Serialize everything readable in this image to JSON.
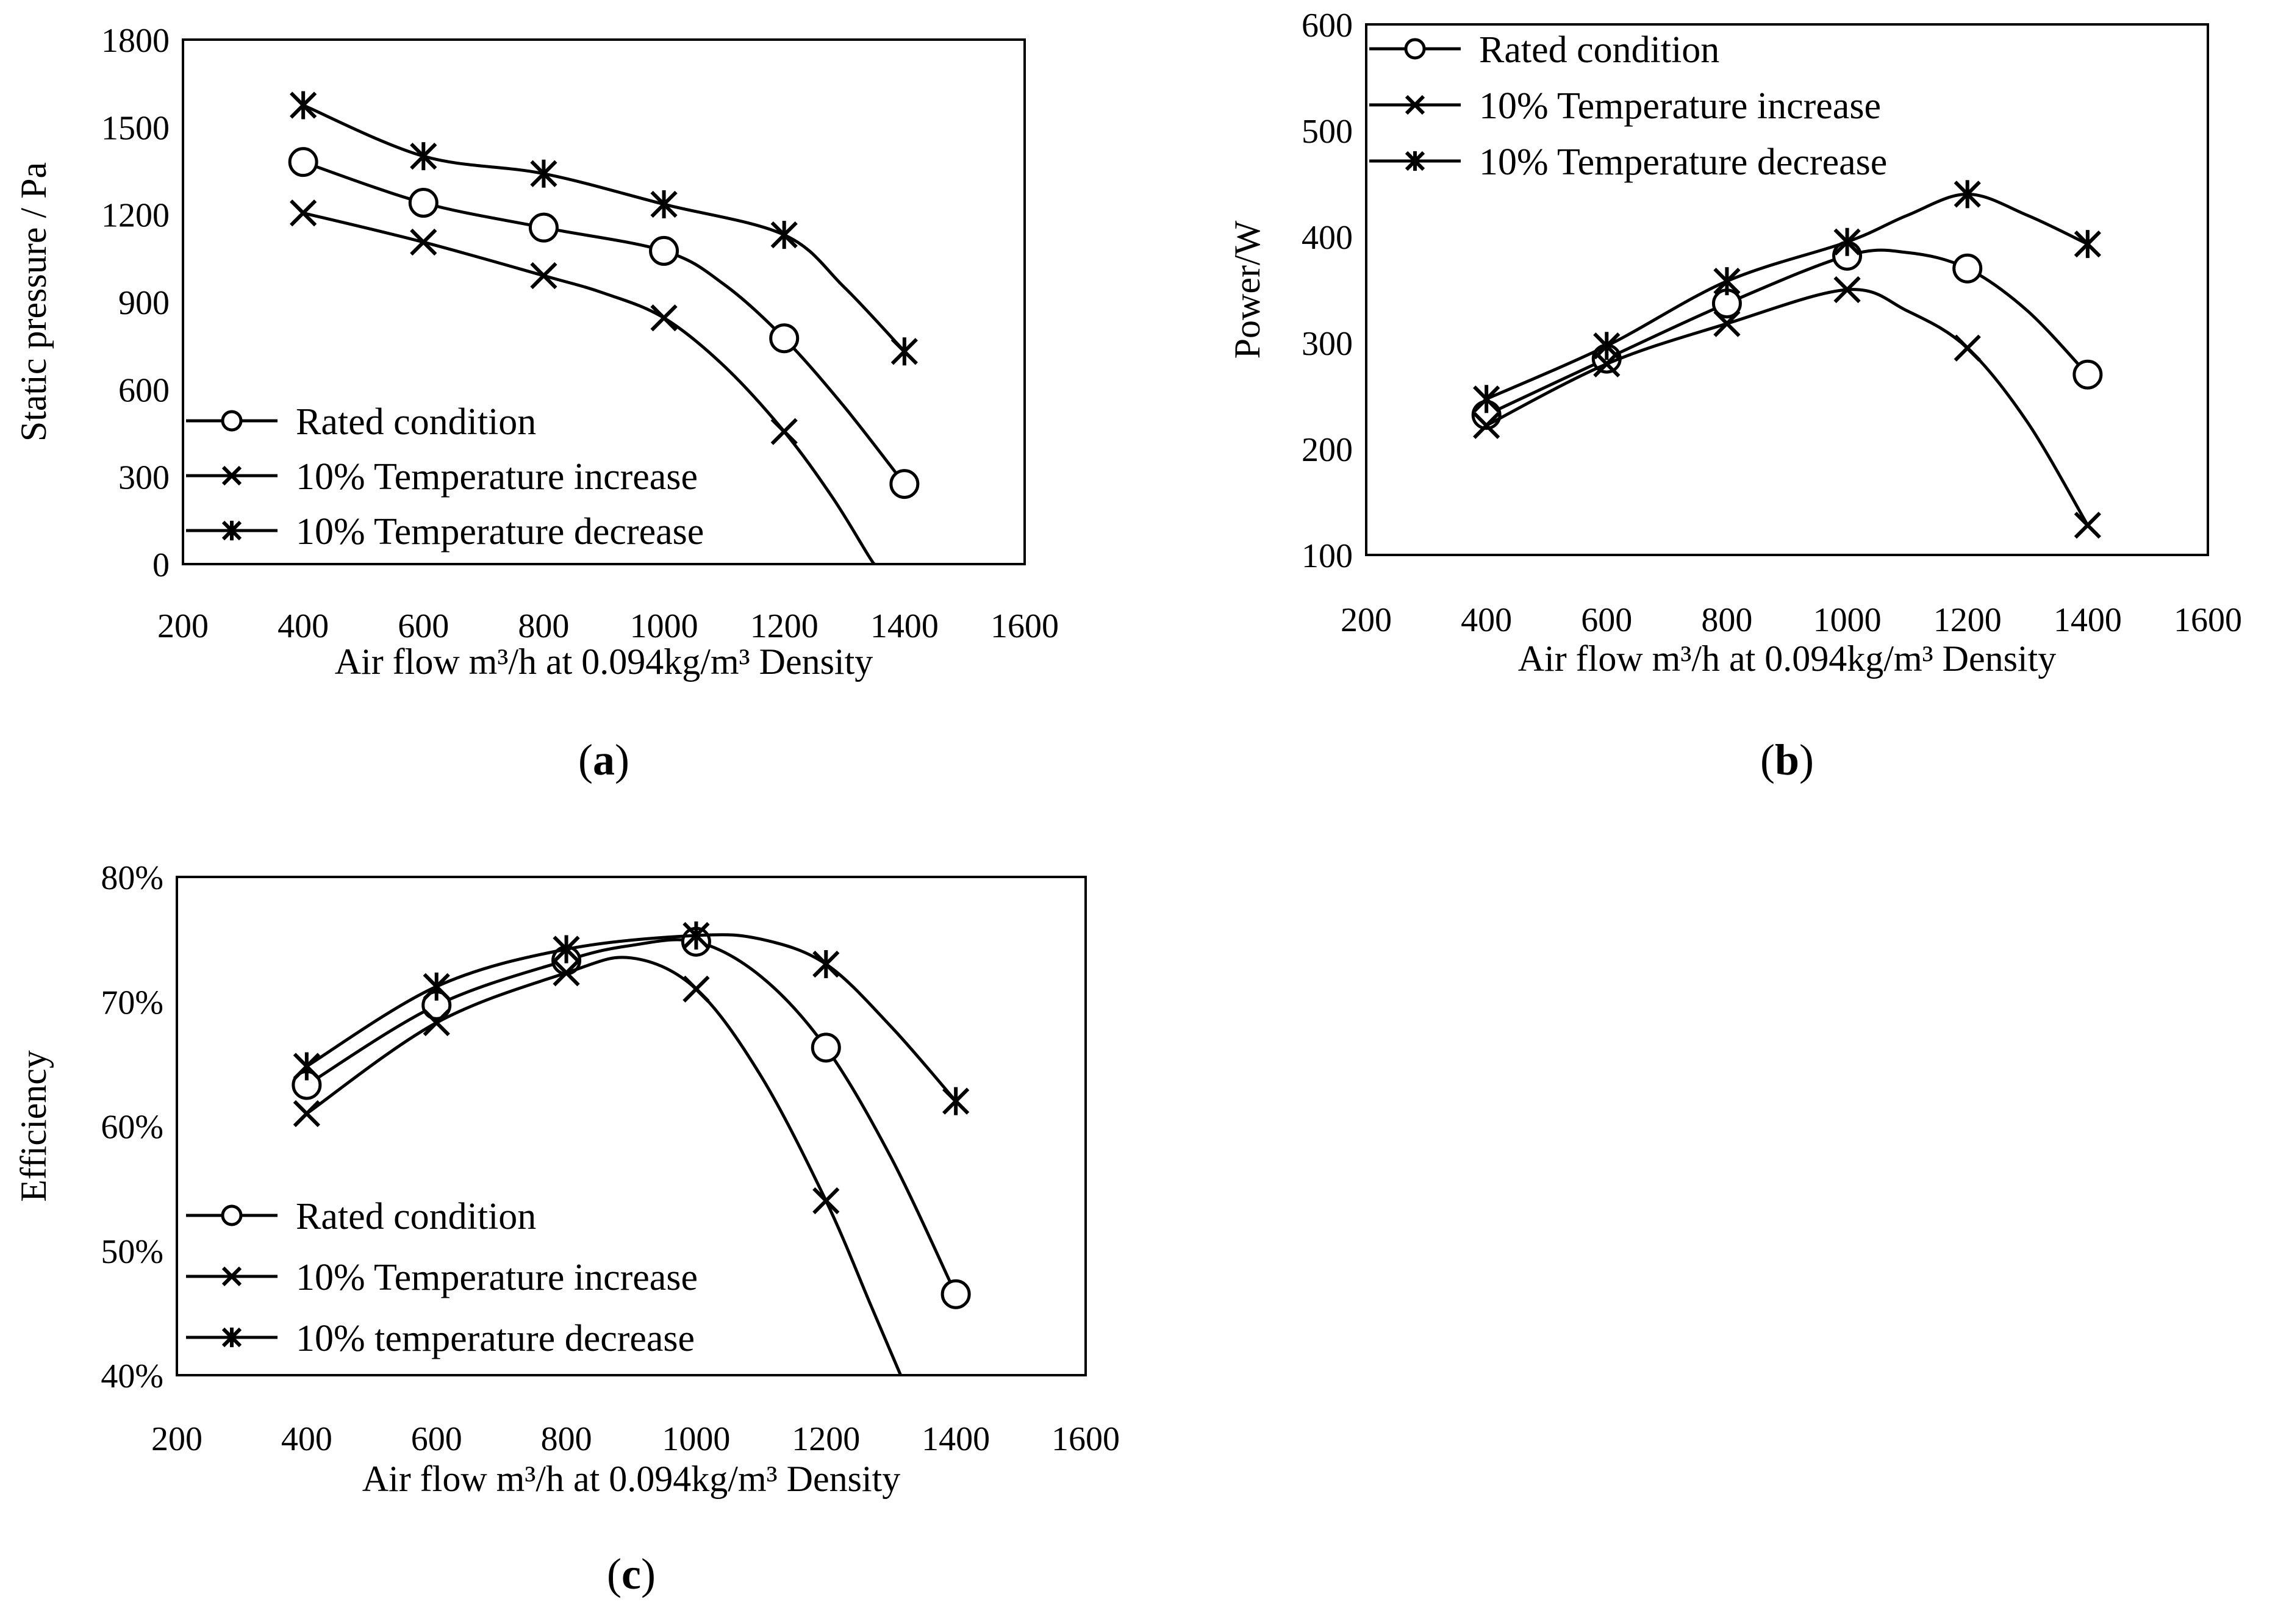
{
  "chart_data": [
    {
      "type": "line",
      "panel": "(a)",
      "panel_letter": "a",
      "xlabel": "Air flow  m³/h at 0.094kg/m³ Density",
      "ylabel": "Static pressure / Pa",
      "xlim": [
        200,
        1600
      ],
      "ylim": [
        0,
        1800
      ],
      "xticks": [
        200,
        400,
        600,
        800,
        1000,
        1200,
        1400,
        1600
      ],
      "yticks": [
        0,
        300,
        600,
        900,
        1200,
        1500,
        1800
      ],
      "yformat": "int",
      "grid": false,
      "legend_position": "bottom-left",
      "series": [
        {
          "name": "Rated condition",
          "marker": "circle",
          "x": [
            400,
            600,
            800,
            1000,
            1200,
            1400
          ],
          "y": [
            1380,
            1240,
            1155,
            1075,
            775,
            275
          ],
          "curve": [
            [
              400,
              1380
            ],
            [
              600,
              1240
            ],
            [
              800,
              1155
            ],
            [
              1000,
              1075
            ],
            [
              1100,
              960
            ],
            [
              1200,
              775
            ],
            [
              1300,
              540
            ],
            [
              1400,
              275
            ]
          ]
        },
        {
          "name": "10% Temperature increase",
          "marker": "x",
          "x": [
            400,
            600,
            800,
            1000,
            1200
          ],
          "y": [
            1205,
            1105,
            990,
            845,
            455
          ],
          "curve": [
            [
              400,
              1205
            ],
            [
              600,
              1105
            ],
            [
              800,
              990
            ],
            [
              900,
              930
            ],
            [
              1000,
              845
            ],
            [
              1100,
              680
            ],
            [
              1200,
              455
            ],
            [
              1280,
              230
            ],
            [
              1340,
              30
            ],
            [
              1350,
              0
            ]
          ]
        },
        {
          "name": "10% Temperature decrease",
          "marker": "star",
          "x": [
            400,
            600,
            800,
            1000,
            1200,
            1400
          ],
          "y": [
            1575,
            1400,
            1340,
            1235,
            1130,
            730
          ],
          "curve": [
            [
              400,
              1575
            ],
            [
              600,
              1400
            ],
            [
              800,
              1340
            ],
            [
              1000,
              1235
            ],
            [
              1200,
              1130
            ],
            [
              1300,
              950
            ],
            [
              1400,
              730
            ]
          ]
        }
      ]
    },
    {
      "type": "line",
      "panel": "(b)",
      "panel_letter": "b",
      "xlabel": "Air flow  m³/h at 0.094kg/m³ Density",
      "ylabel": "Power/W",
      "xlim": [
        200,
        1600
      ],
      "ylim": [
        100,
        600
      ],
      "xticks": [
        200,
        400,
        600,
        800,
        1000,
        1200,
        1400,
        1600
      ],
      "yticks": [
        100,
        200,
        300,
        400,
        500,
        600
      ],
      "yformat": "int",
      "grid": false,
      "legend_position": "top-left",
      "series": [
        {
          "name": "Rated condition",
          "marker": "circle",
          "x": [
            400,
            600,
            800,
            1000,
            1200,
            1400
          ],
          "y": [
            232,
            285,
            337,
            382,
            370,
            270
          ],
          "curve": [
            [
              400,
              232
            ],
            [
              600,
              285
            ],
            [
              800,
              337
            ],
            [
              1000,
              382
            ],
            [
              1100,
              385
            ],
            [
              1200,
              370
            ],
            [
              1300,
              330
            ],
            [
              1400,
              270
            ]
          ]
        },
        {
          "name": "10% Temperature increase",
          "marker": "x",
          "x": [
            400,
            600,
            800,
            1000,
            1200,
            1400
          ],
          "y": [
            222,
            280,
            318,
            350,
            295,
            128
          ],
          "curve": [
            [
              400,
              222
            ],
            [
              600,
              280
            ],
            [
              800,
              318
            ],
            [
              1000,
              350
            ],
            [
              1100,
              330
            ],
            [
              1200,
              295
            ],
            [
              1300,
              225
            ],
            [
              1400,
              128
            ]
          ]
        },
        {
          "name": "10% Temperature decrease",
          "marker": "star",
          "x": [
            400,
            600,
            800,
            1000,
            1200,
            1400
          ],
          "y": [
            247,
            297,
            358,
            395,
            440,
            393
          ],
          "curve": [
            [
              400,
              247
            ],
            [
              600,
              297
            ],
            [
              800,
              358
            ],
            [
              1000,
              395
            ],
            [
              1100,
              420
            ],
            [
              1200,
              440
            ],
            [
              1300,
              420
            ],
            [
              1400,
              393
            ]
          ]
        }
      ]
    },
    {
      "type": "line",
      "panel": "(c)",
      "panel_letter": "c",
      "xlabel": "Air flow  m³/h at 0.094kg/m³ Density",
      "ylabel": "Efficiency",
      "xlim": [
        200,
        1600
      ],
      "ylim": [
        0.4,
        0.8
      ],
      "xticks": [
        200,
        400,
        600,
        800,
        1000,
        1200,
        1400,
        1600
      ],
      "yticks": [
        0.4,
        0.5,
        0.6,
        0.7,
        0.8
      ],
      "yformat": "percent",
      "grid": false,
      "legend_position": "bottom-left",
      "series": [
        {
          "name": "Rated condition",
          "marker": "circle",
          "x": [
            400,
            600,
            800,
            1000,
            1200,
            1400
          ],
          "y": [
            0.633,
            0.697,
            0.733,
            0.748,
            0.663,
            0.465
          ],
          "curve": [
            [
              400,
              0.633
            ],
            [
              600,
              0.697
            ],
            [
              800,
              0.733
            ],
            [
              900,
              0.745
            ],
            [
              1000,
              0.748
            ],
            [
              1100,
              0.72
            ],
            [
              1200,
              0.663
            ],
            [
              1300,
              0.575
            ],
            [
              1400,
              0.465
            ]
          ]
        },
        {
          "name": "10% Temperature increase",
          "marker": "x",
          "x": [
            400,
            600,
            800,
            1000,
            1200
          ],
          "y": [
            0.61,
            0.683,
            0.723,
            0.71,
            0.54
          ],
          "curve": [
            [
              400,
              0.61
            ],
            [
              600,
              0.683
            ],
            [
              800,
              0.723
            ],
            [
              900,
              0.735
            ],
            [
              1000,
              0.71
            ],
            [
              1100,
              0.64
            ],
            [
              1200,
              0.54
            ],
            [
              1270,
              0.455
            ],
            [
              1315,
              0.4
            ]
          ]
        },
        {
          "name": "10% temperature decrease",
          "marker": "star",
          "x": [
            400,
            600,
            800,
            1000,
            1200,
            1400
          ],
          "y": [
            0.648,
            0.712,
            0.742,
            0.753,
            0.73,
            0.62
          ],
          "curve": [
            [
              400,
              0.648
            ],
            [
              600,
              0.712
            ],
            [
              800,
              0.742
            ],
            [
              1000,
              0.753
            ],
            [
              1100,
              0.75
            ],
            [
              1200,
              0.73
            ],
            [
              1300,
              0.68
            ],
            [
              1400,
              0.62
            ]
          ]
        }
      ]
    }
  ]
}
